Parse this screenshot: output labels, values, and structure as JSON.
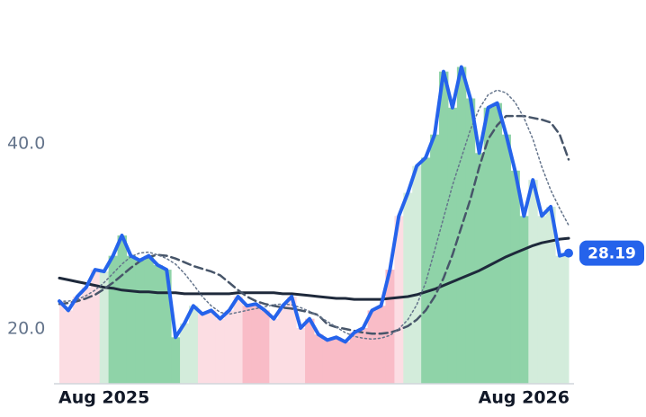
{
  "chart_data": {
    "type": "line",
    "categories": [
      null,
      null,
      null,
      null,
      null,
      "Aug 2025",
      null,
      null,
      null,
      null,
      null,
      null,
      null,
      null,
      null,
      null,
      null,
      null,
      null,
      null,
      null,
      null,
      null,
      null,
      null,
      null,
      null,
      null,
      null,
      null,
      null,
      null,
      null,
      null,
      null,
      null,
      null,
      null,
      null,
      null,
      null,
      null,
      null,
      null,
      null,
      null,
      null,
      null,
      null,
      null,
      null,
      null,
      "Aug 2026",
      null,
      null,
      null,
      null,
      null
    ],
    "series": [
      {
        "color": "#2563eb",
        "values": [
          23.0,
          22.0,
          23.5,
          24.5,
          26.4,
          26.2,
          27.9,
          30.1,
          27.9,
          27.4,
          27.9,
          26.9,
          26.4,
          19.1,
          20.6,
          22.5,
          21.6,
          22.0,
          21.1,
          22.0,
          23.5,
          22.5,
          22.7,
          22.0,
          21.1,
          22.5,
          23.5,
          20.1,
          21.1,
          19.4,
          18.8,
          19.1,
          18.6,
          19.6,
          20.1,
          22.0,
          22.5,
          26.4,
          32.2,
          34.7,
          37.6,
          38.5,
          41.0,
          47.8,
          43.9,
          48.3,
          44.9,
          39.0,
          43.9,
          44.4,
          41.0,
          37.1,
          32.2,
          36.1,
          32.2,
          33.2,
          27.9,
          28.19
        ]
      },
      {
        "color": "#64748b",
        "values": [
          23.0,
          23.0,
          23.2,
          23.6,
          24.2,
          25.0,
          26.0,
          27.0,
          27.8,
          28.2,
          28.3,
          28.0,
          27.6,
          27.0,
          26.0,
          24.8,
          23.5,
          22.5,
          21.8,
          21.6,
          21.8,
          22.0,
          22.2,
          22.4,
          22.6,
          22.7,
          22.6,
          22.3,
          21.9,
          21.4,
          20.8,
          20.2,
          19.6,
          19.2,
          19.0,
          18.9,
          19.0,
          19.3,
          20.0,
          21.0,
          22.6,
          25.0,
          28.5,
          32.0,
          35.5,
          38.5,
          41.5,
          43.8,
          45.3,
          45.8,
          45.5,
          44.5,
          42.8,
          40.5,
          37.5,
          35.0,
          33.0,
          31.2
        ]
      },
      {
        "color": "#475569",
        "values": [
          22.7,
          22.8,
          23.0,
          23.3,
          23.7,
          24.3,
          25.0,
          25.8,
          26.6,
          27.3,
          27.8,
          28.0,
          27.9,
          27.6,
          27.2,
          26.8,
          26.5,
          26.2,
          25.8,
          25.0,
          24.2,
          23.5,
          23.0,
          22.7,
          22.5,
          22.3,
          22.2,
          22.0,
          21.8,
          21.5,
          20.5,
          20.2,
          20.0,
          19.8,
          19.6,
          19.5,
          19.5,
          19.6,
          19.9,
          20.3,
          21.0,
          22.0,
          23.5,
          25.5,
          28.0,
          31.0,
          34.0,
          37.5,
          40.5,
          42.0,
          43.0,
          43.0,
          43.0,
          42.8,
          42.6,
          42.3,
          41.0,
          38.3
        ]
      },
      {
        "color": "#1e293b",
        "values": [
          25.5,
          25.3,
          25.1,
          24.9,
          24.7,
          24.5,
          24.4,
          24.2,
          24.1,
          24.0,
          24.0,
          23.9,
          23.9,
          23.9,
          23.8,
          23.8,
          23.8,
          23.8,
          23.8,
          23.8,
          23.9,
          23.9,
          23.9,
          23.9,
          23.9,
          23.8,
          23.8,
          23.7,
          23.6,
          23.5,
          23.4,
          23.3,
          23.3,
          23.2,
          23.2,
          23.2,
          23.2,
          23.3,
          23.4,
          23.5,
          23.7,
          24.0,
          24.3,
          24.7,
          25.1,
          25.5,
          25.9,
          26.3,
          26.8,
          27.3,
          27.8,
          28.2,
          28.6,
          29.0,
          29.3,
          29.5,
          29.7,
          29.8
        ]
      }
    ],
    "band_colors": [
      "#fcdde3",
      "#fcdde3",
      "#fcdde3",
      "#fcdde3",
      "#fcdde3",
      "#d3ecdb",
      "#8fd3a8",
      "#8fd3a8",
      "#8fd3a8",
      "#8fd3a8",
      "#8fd3a8",
      "#8fd3a8",
      "#8fd3a8",
      "#8fd3a8",
      "#d3ecdb",
      "#d3ecdb",
      "#fcdde3",
      "#fcdde3",
      "#fcdde3",
      "#fcdde3",
      "#fcdde3",
      "#f9bcc7",
      "#f9bcc7",
      "#f9bcc7",
      "#fcdde3",
      "#fcdde3",
      "#fcdde3",
      "#fcdde3",
      "#f9bcc7",
      "#f9bcc7",
      "#f9bcc7",
      "#f9bcc7",
      "#f9bcc7",
      "#f9bcc7",
      "#f9bcc7",
      "#f9bcc7",
      "#f9bcc7",
      "#f9bcc7",
      "#fcdde3",
      "#d3ecdb",
      "#d3ecdb",
      "#8fd3a8",
      "#8fd3a8",
      "#8fd3a8",
      "#8fd3a8",
      "#8fd3a8",
      "#8fd3a8",
      "#8fd3a8",
      "#8fd3a8",
      "#8fd3a8",
      "#8fd3a8",
      "#8fd3a8",
      "#8fd3a8",
      "#d3ecdb",
      "#d3ecdb",
      "#d3ecdb",
      "#d3ecdb",
      "#d3ecdb"
    ],
    "ylim": [
      14.08,
      51.6
    ],
    "yticks": [
      {
        "value": 20,
        "label": "20.0"
      },
      {
        "value": 40,
        "label": "40.0"
      }
    ],
    "grid": false
  }
}
